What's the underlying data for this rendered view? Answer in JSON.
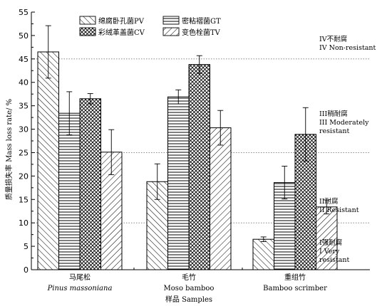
{
  "chart_data": {
    "type": "bar",
    "ylabel": "质量损失率 Mass loss rate/ %",
    "xlabel": "样品 Samples",
    "ylim": [
      0,
      55
    ],
    "yticks": [
      0,
      5,
      10,
      15,
      20,
      25,
      30,
      35,
      40,
      45,
      50,
      55
    ],
    "categories": [
      {
        "zh": "马尾松",
        "en": "Pinus massoniana"
      },
      {
        "zh": "毛竹",
        "en": "Moso bamboo"
      },
      {
        "zh": "重组竹",
        "en": "Bamboo scrimber"
      }
    ],
    "series": [
      {
        "name": "绵腐卧孔菌PV",
        "pattern": "diag-right",
        "values": [
          46.5,
          18.8,
          6.5
        ],
        "errors": [
          5.6,
          3.8,
          0.5
        ]
      },
      {
        "name": "密粘褶菌GT",
        "pattern": "horizontal",
        "values": [
          33.4,
          36.9,
          18.6
        ],
        "errors": [
          4.6,
          1.5,
          3.5
        ]
      },
      {
        "name": "彩绒革盖菌CV",
        "pattern": "crosshatch",
        "values": [
          36.5,
          43.8,
          28.9
        ],
        "errors": [
          1.1,
          1.9,
          5.7
        ]
      },
      {
        "name": "变色栓菌TV",
        "pattern": "diag-left",
        "values": [
          25.1,
          30.3,
          13.4
        ],
        "errors": [
          4.8,
          3.7,
          1.5
        ]
      }
    ],
    "legend": "top-center",
    "reference_lines": [
      {
        "value": 45,
        "label_zh": "IV不耐腐",
        "label_en": "IV Non-resistant"
      },
      {
        "value": 25,
        "label_zh": "III稍耐腐",
        "label_en": "III Moderately resistant"
      },
      {
        "value": 10,
        "label_zh": "II耐腐",
        "label_en": "II Resistant"
      },
      {
        "value": 0,
        "label_zh": "I强耐腐",
        "label_en": "I Very resistant"
      }
    ],
    "grid": false
  },
  "annotation_lines": [
    [
      "IV不耐腐",
      "IV Non-resistant"
    ],
    [
      "III稍耐腐",
      "III Moderately",
      "resistant"
    ],
    [
      "II耐腐",
      "II Resistant"
    ],
    [
      "I强耐腐",
      "I Very",
      "resistant"
    ]
  ]
}
